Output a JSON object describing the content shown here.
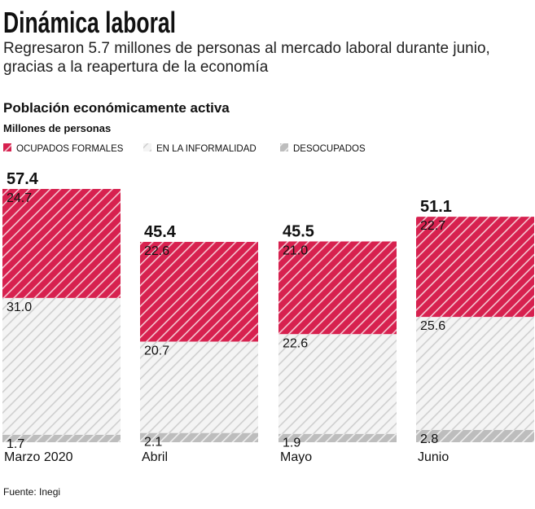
{
  "chart_data": {
    "type": "stacked-bar",
    "title": "Dinámica laboral",
    "subtitle": "Regresaron 5.7 millones de personas al mercado laboral durante junio, gracias a la reapertura de la economía",
    "chart_title": "Población económicamente activa",
    "units": "Millones de personas",
    "source": "Fuente: Inegi",
    "categories": [
      "Marzo 2020",
      "Abril",
      "Mayo",
      "Junio"
    ],
    "totals": [
      57.4,
      45.4,
      45.5,
      51.1
    ],
    "series": [
      {
        "name": "DESOCUPADOS",
        "color": "#bdbdbd",
        "values": [
          1.7,
          2.1,
          1.9,
          2.8
        ]
      },
      {
        "name": "EN LA INFORMALIDAD",
        "color": "#f4f4f4",
        "values": [
          31.0,
          20.7,
          22.6,
          25.6
        ],
        "value_labels": [
          "31.0",
          "20.7",
          "22.6",
          "25.6"
        ]
      },
      {
        "name": "OCUPADOS FORMALES",
        "color": "#d7214f",
        "values": [
          24.7,
          22.6,
          21.0,
          22.7
        ],
        "value_labels": [
          "24.7",
          "22.6",
          "21.0",
          "22.7"
        ]
      }
    ],
    "legend_order": [
      2,
      1,
      0
    ]
  }
}
